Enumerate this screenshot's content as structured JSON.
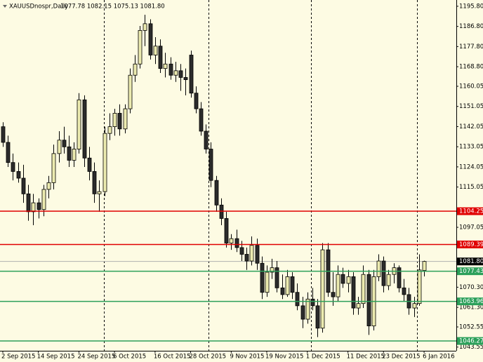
{
  "chart_data": {
    "type": "candlestick",
    "title": "XAUUSDnospr,Daily",
    "ohlc_text": "1077.78 1082.15 1075.13 1081.80",
    "up_color": "#ecebb0",
    "down_color": "#2b2b2b",
    "background": "#fdfbe3",
    "categories": [
      "2 Sep 2015",
      null,
      null,
      null,
      null,
      null,
      null,
      "14 Sep 2015",
      null,
      null,
      null,
      null,
      null,
      null,
      null,
      "24 Sep 2015",
      null,
      null,
      null,
      null,
      null,
      null,
      "6 Oct 2015",
      null,
      null,
      null,
      null,
      null,
      null,
      null,
      "16 Oct 2015",
      null,
      null,
      null,
      null,
      null,
      null,
      "28 Oct 2015",
      null,
      null,
      null,
      null,
      null,
      null,
      null,
      "9 Nov 2015",
      null,
      null,
      null,
      null,
      null,
      null,
      "19 Nov 2015",
      null,
      null,
      null,
      null,
      null,
      null,
      null,
      "1 Dec 2015",
      null,
      null,
      null,
      null,
      null,
      null,
      null,
      "11 Dec 2015",
      null,
      null,
      null,
      null,
      null,
      null,
      "23 Dec 2015",
      null,
      null,
      null,
      null,
      null,
      null,
      null,
      "6 Jan 2016"
    ],
    "open": [
      1142,
      1135,
      1126,
      1122,
      1119,
      1112,
      1104,
      1108,
      1105,
      1114,
      1117,
      1130,
      1136,
      1133,
      1127,
      1132,
      1154,
      1128,
      1122,
      1112,
      1113,
      1139,
      1142,
      1148,
      1141,
      1150,
      1165,
      1170,
      1185,
      1188,
      1174,
      1178,
      1168,
      1170,
      1165,
      1167,
      1164,
      1174,
      1157,
      1150,
      1140,
      1132,
      1118,
      1107,
      1101,
      1090,
      1092,
      1088,
      1085,
      1082,
      1089,
      1081,
      1068,
      1077,
      1079,
      1070,
      1067,
      1075,
      1068,
      1062,
      1056,
      1065,
      1062,
      1052,
      1087,
      1068,
      1066,
      1076,
      1072,
      1075,
      1061,
      1063,
      1076,
      1053,
      1075,
      1082,
      1071,
      1076,
      1079,
      1070,
      1067,
      1061,
      1063,
      1077.78
    ],
    "high": [
      1144,
      1138,
      1130,
      1126,
      1125,
      1116,
      1112,
      1110,
      1116,
      1120,
      1134,
      1140,
      1142,
      1138,
      1135,
      1157,
      1156,
      1133,
      1126,
      1118,
      1142,
      1148,
      1150,
      1152,
      1152,
      1168,
      1174,
      1187,
      1192,
      1190,
      1182,
      1181,
      1175,
      1173,
      1171,
      1170,
      1168,
      1176,
      1160,
      1153,
      1143,
      1135,
      1120,
      1110,
      1104,
      1094,
      1096,
      1091,
      1088,
      1093,
      1092,
      1084,
      1080,
      1083,
      1082,
      1076,
      1078,
      1077,
      1072,
      1066,
      1068,
      1070,
      1065,
      1090,
      1090,
      1077,
      1080,
      1079,
      1078,
      1077,
      1066,
      1080,
      1078,
      1078,
      1085,
      1084,
      1078,
      1081,
      1080,
      1074,
      1070,
      1066,
      1085,
      1082.15
    ],
    "low": [
      1133,
      1124,
      1118,
      1117,
      1108,
      1100,
      1098,
      1101,
      1102,
      1110,
      1114,
      1126,
      1130,
      1124,
      1124,
      1130,
      1124,
      1118,
      1108,
      1104,
      1111,
      1136,
      1138,
      1138,
      1139,
      1148,
      1162,
      1168,
      1178,
      1172,
      1170,
      1166,
      1164,
      1163,
      1162,
      1158,
      1156,
      1155,
      1148,
      1138,
      1130,
      1115,
      1104,
      1098,
      1088,
      1087,
      1086,
      1082,
      1078,
      1080,
      1078,
      1065,
      1066,
      1074,
      1068,
      1065,
      1066,
      1065,
      1060,
      1052,
      1054,
      1060,
      1048,
      1050,
      1066,
      1062,
      1064,
      1070,
      1068,
      1058,
      1058,
      1061,
      1049,
      1051,
      1073,
      1068,
      1069,
      1072,
      1068,
      1064,
      1058,
      1057,
      1062,
      1075.13
    ],
    "close": [
      1135,
      1126,
      1122,
      1119,
      1112,
      1104,
      1108,
      1105,
      1114,
      1117,
      1130,
      1136,
      1133,
      1127,
      1132,
      1154,
      1128,
      1122,
      1112,
      1113,
      1139,
      1142,
      1148,
      1141,
      1150,
      1165,
      1170,
      1185,
      1188,
      1174,
      1178,
      1168,
      1170,
      1165,
      1167,
      1164,
      1163,
      1157,
      1150,
      1140,
      1132,
      1118,
      1107,
      1101,
      1090,
      1092,
      1088,
      1085,
      1082,
      1089,
      1081,
      1068,
      1077,
      1079,
      1070,
      1067,
      1075,
      1068,
      1062,
      1056,
      1065,
      1062,
      1052,
      1087,
      1068,
      1066,
      1076,
      1072,
      1075,
      1061,
      1063,
      1076,
      1053,
      1075,
      1082,
      1071,
      1076,
      1079,
      1070,
      1067,
      1061,
      1063,
      1078,
      1081.8
    ],
    "ylim": [
      1041.9,
      1198.6
    ],
    "yticks": [
      {
        "value": 1195.8,
        "label": "1195.80"
      },
      {
        "value": 1186.8,
        "label": "1186.80"
      },
      {
        "value": 1177.8,
        "label": "1177.80"
      },
      {
        "value": 1168.8,
        "label": "1168.80"
      },
      {
        "value": 1160.05,
        "label": "1160.05"
      },
      {
        "value": 1151.05,
        "label": "1151.05"
      },
      {
        "value": 1142.05,
        "label": "1142.05"
      },
      {
        "value": 1133.05,
        "label": "1133.05"
      },
      {
        "value": 1124.05,
        "label": "1124.05"
      },
      {
        "value": 1115.05,
        "label": "1115.05"
      },
      {
        "value": 1097.05,
        "label": "1097.05"
      },
      {
        "value": 1070.3,
        "label": "1070.30"
      },
      {
        "value": 1061.3,
        "label": "1061.30"
      },
      {
        "value": 1052.55,
        "label": "1052.55"
      },
      {
        "value": 1043.55,
        "label": "1043.55"
      }
    ],
    "levels": [
      {
        "value": 1104.25,
        "label": "1104.25",
        "color": "#e00000"
      },
      {
        "value": 1089.39,
        "label": "1089.39",
        "color": "#e00000"
      },
      {
        "value": 1077.43,
        "label": "1077.43",
        "color": "#2ca05a"
      },
      {
        "value": 1063.96,
        "label": "1063.96",
        "color": "#2ca05a"
      },
      {
        "value": 1046.27,
        "label": "1046.27",
        "color": "#2ca05a"
      }
    ],
    "current": {
      "value": 1081.8,
      "label": "1081.80",
      "color": "#000000"
    }
  }
}
